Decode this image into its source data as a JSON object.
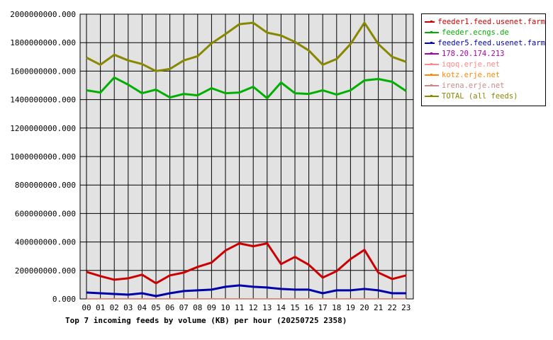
{
  "chart_data": {
    "type": "line",
    "title": "Top 7 incoming feeds by volume (KB) per hour (20250725 2358)",
    "categories": [
      "00",
      "01",
      "02",
      "03",
      "04",
      "05",
      "06",
      "07",
      "08",
      "09",
      "10",
      "11",
      "12",
      "13",
      "14",
      "15",
      "16",
      "17",
      "18",
      "19",
      "20",
      "21",
      "22",
      "23"
    ],
    "ylim": [
      0,
      2000000000
    ],
    "y_ticks": [
      "0.000",
      "200000000.000",
      "400000000.000",
      "600000000.000",
      "800000000.000",
      "1000000000.000",
      "1200000000.000",
      "1400000000.000",
      "1600000000.000",
      "1800000000.000",
      "2000000000.000"
    ],
    "grid": true,
    "legend_position": "right",
    "series": [
      {
        "name": "feeder1.feed.usenet.farm",
        "color": "#cc0000",
        "values": [
          190000000,
          160000000,
          135000000,
          145000000,
          170000000,
          110000000,
          165000000,
          185000000,
          225000000,
          255000000,
          340000000,
          390000000,
          370000000,
          390000000,
          245000000,
          295000000,
          240000000,
          150000000,
          195000000,
          280000000,
          345000000,
          185000000,
          140000000,
          165000000
        ]
      },
      {
        "name": "feeder.ecngs.de",
        "color": "#00b000",
        "values": [
          1465000000,
          1450000000,
          1555000000,
          1505000000,
          1445000000,
          1470000000,
          1415000000,
          1440000000,
          1430000000,
          1480000000,
          1445000000,
          1450000000,
          1490000000,
          1410000000,
          1520000000,
          1445000000,
          1440000000,
          1465000000,
          1435000000,
          1465000000,
          1535000000,
          1545000000,
          1525000000,
          1460000000
        ]
      },
      {
        "name": "feeder5.feed.usenet.farm",
        "color": "#0000aa",
        "values": [
          45000000,
          40000000,
          35000000,
          30000000,
          40000000,
          20000000,
          40000000,
          55000000,
          60000000,
          65000000,
          85000000,
          95000000,
          85000000,
          80000000,
          70000000,
          65000000,
          65000000,
          40000000,
          60000000,
          60000000,
          70000000,
          60000000,
          40000000,
          40000000
        ]
      },
      {
        "name": "178.20.174.213",
        "color": "#aa00aa",
        "values": [
          1000000,
          1000000,
          1000000,
          1000000,
          1000000,
          1000000,
          1000000,
          1000000,
          1000000,
          1000000,
          1000000,
          1000000,
          1000000,
          1000000,
          1000000,
          1000000,
          1000000,
          1000000,
          1000000,
          1000000,
          1000000,
          1000000,
          1000000,
          1000000
        ]
      },
      {
        "name": "iqoq.erje.net",
        "color": "#ff8888",
        "values": [
          500000,
          500000,
          500000,
          500000,
          500000,
          500000,
          500000,
          500000,
          500000,
          500000,
          500000,
          500000,
          500000,
          500000,
          500000,
          500000,
          500000,
          500000,
          500000,
          500000,
          500000,
          500000,
          500000,
          500000
        ]
      },
      {
        "name": "kotz.erje.net",
        "color": "#ff8800",
        "values": [
          500000,
          500000,
          500000,
          500000,
          500000,
          500000,
          500000,
          500000,
          500000,
          500000,
          500000,
          500000,
          500000,
          500000,
          500000,
          500000,
          500000,
          500000,
          500000,
          500000,
          500000,
          500000,
          500000,
          500000
        ]
      },
      {
        "name": "irena.erje.net",
        "color": "#cc8888",
        "values": [
          500000,
          500000,
          500000,
          500000,
          500000,
          500000,
          500000,
          500000,
          500000,
          500000,
          500000,
          500000,
          500000,
          500000,
          500000,
          500000,
          500000,
          500000,
          500000,
          500000,
          500000,
          500000,
          500000,
          500000
        ]
      },
      {
        "name": "TOTAL (all feeds)",
        "color": "#888800",
        "values": [
          1695000000,
          1645000000,
          1715000000,
          1675000000,
          1650000000,
          1600000000,
          1615000000,
          1675000000,
          1705000000,
          1795000000,
          1860000000,
          1930000000,
          1940000000,
          1870000000,
          1850000000,
          1805000000,
          1745000000,
          1645000000,
          1685000000,
          1790000000,
          1940000000,
          1790000000,
          1700000000,
          1665000000
        ]
      }
    ]
  }
}
